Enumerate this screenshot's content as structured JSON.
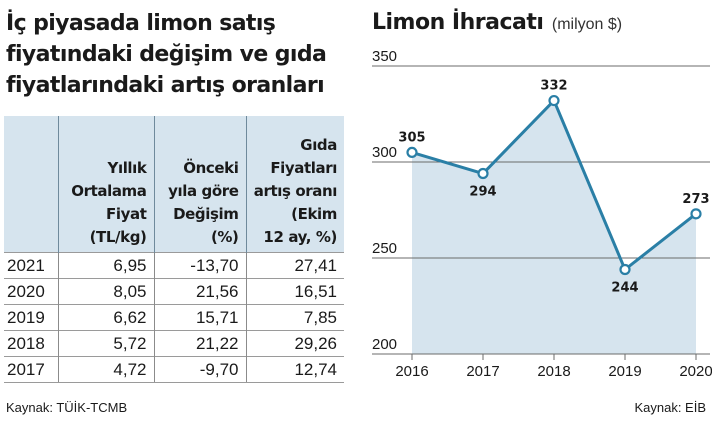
{
  "left": {
    "title_lines": [
      "İç piyasada limon satış",
      "fiyatındaki değişim ve gıda",
      "fiyatlarındaki artış oranları"
    ],
    "headers": [
      [],
      [
        "Yıllık",
        "Ortalama",
        "Fiyat",
        "(TL/kg)"
      ],
      [
        "Önceki",
        "yıla göre",
        "Değişim",
        "(%)"
      ],
      [
        "Gıda",
        "Fiyatları",
        "artış oranı",
        "(Ekim",
        "12 ay, %)"
      ]
    ],
    "rows": [
      [
        "2021",
        "6,95",
        "-13,70",
        "27,41"
      ],
      [
        "2020",
        "8,05",
        "21,56",
        "16,51"
      ],
      [
        "2019",
        "6,62",
        "15,71",
        "7,85"
      ],
      [
        "2018",
        "5,72",
        "21,22",
        "29,26"
      ],
      [
        "2017",
        "4,72",
        "-9,70",
        "12,74"
      ]
    ],
    "source": "Kaynak: TÜİK-TCMB"
  },
  "right": {
    "title": "Limon İhracatı",
    "unit": "(milyon $)",
    "source": "Kaynak: EİB"
  },
  "colors": {
    "line": "#2a7fa6",
    "fill": "#d6e4ee",
    "header_bg": "#d6e4ee"
  },
  "chart_data": {
    "type": "area",
    "title": "Limon İhracatı",
    "subtitle": "(milyon $)",
    "x": [
      "2016",
      "2017",
      "2018",
      "2019",
      "2020"
    ],
    "series": [
      {
        "values": [
          305,
          294,
          332,
          244,
          273
        ]
      }
    ],
    "data_labels": [
      "305",
      "294",
      "332",
      "244",
      "273"
    ],
    "yticks": [
      200,
      250,
      300,
      350
    ],
    "ylim": [
      200,
      350
    ],
    "grid": true
  }
}
